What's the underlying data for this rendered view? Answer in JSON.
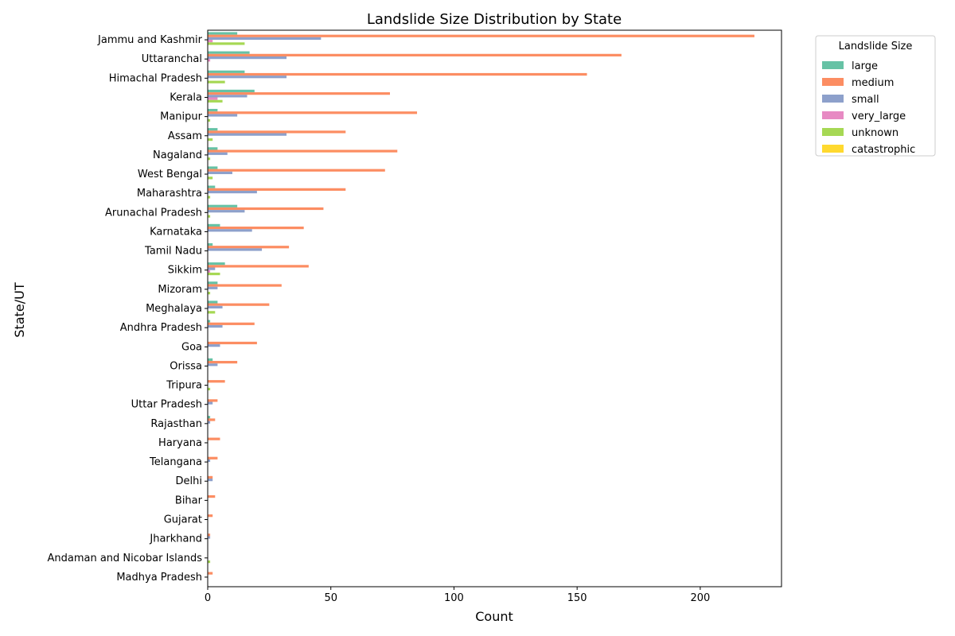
{
  "chart_data": {
    "type": "bar",
    "orientation": "horizontal",
    "title": "Landslide Size Distribution by State",
    "xlabel": "Count",
    "ylabel": "State/UT",
    "xlim": [
      0,
      233
    ],
    "xticks": [
      0,
      50,
      100,
      150,
      200
    ],
    "grid": false,
    "legend": {
      "title": "Landslide Size",
      "placement": "outside-top-right"
    },
    "categories": [
      "Jammu and Kashmir",
      "Uttaranchal",
      "Himachal Pradesh",
      "Kerala",
      "Manipur",
      "Assam",
      "Nagaland",
      "West Bengal",
      "Maharashtra",
      "Arunachal Pradesh",
      "Karnataka",
      "Tamil Nadu",
      "Sikkim",
      "Mizoram",
      "Meghalaya",
      "Andhra Pradesh",
      "Goa",
      "Orissa",
      "Tripura",
      "Uttar Pradesh",
      "Rajasthan",
      "Haryana",
      "Telangana",
      "Delhi",
      "Bihar",
      "Gujarat",
      "Jharkhand",
      "Andaman and Nicobar Islands",
      "Madhya Pradesh"
    ],
    "series": [
      {
        "name": "large",
        "color": "#66c2a5",
        "values": [
          12,
          17,
          15,
          19,
          4,
          4,
          4,
          4,
          3,
          12,
          5,
          2,
          7,
          4,
          4,
          1,
          0,
          2,
          0,
          0,
          1,
          0,
          0,
          0,
          0,
          0,
          0,
          0,
          0
        ]
      },
      {
        "name": "medium",
        "color": "#fc8d62",
        "values": [
          222,
          168,
          154,
          74,
          85,
          56,
          77,
          72,
          56,
          47,
          39,
          33,
          41,
          30,
          25,
          19,
          20,
          12,
          7,
          4,
          3,
          5,
          4,
          2,
          3,
          2,
          1,
          0,
          2
        ]
      },
      {
        "name": "small",
        "color": "#8da0cb",
        "values": [
          46,
          32,
          32,
          16,
          12,
          32,
          8,
          10,
          20,
          15,
          18,
          22,
          3,
          4,
          6,
          6,
          5,
          4,
          0,
          2,
          1,
          0,
          1,
          2,
          0,
          0,
          1,
          0,
          0
        ]
      },
      {
        "name": "very_large",
        "color": "#e78ac3",
        "values": [
          2,
          1,
          0,
          4,
          0,
          0,
          0,
          0,
          0,
          0,
          0,
          0,
          1,
          0,
          0,
          0,
          0,
          0,
          0,
          0,
          0,
          0,
          0,
          0,
          0,
          0,
          0,
          0,
          0
        ]
      },
      {
        "name": "unknown",
        "color": "#a6d854",
        "values": [
          15,
          0,
          7,
          6,
          1,
          2,
          1,
          2,
          1,
          1,
          0,
          0,
          5,
          1,
          3,
          0,
          0,
          0,
          1,
          0,
          0,
          0,
          0,
          0,
          0,
          0,
          0,
          1,
          0
        ]
      },
      {
        "name": "catastrophic",
        "color": "#ffd92f",
        "values": [
          0,
          0,
          0,
          0,
          0,
          0,
          0,
          0,
          0,
          0,
          0,
          0,
          0,
          0,
          0,
          0,
          0,
          0,
          0,
          0,
          0,
          0,
          0,
          0,
          0,
          0,
          0,
          0,
          0
        ]
      }
    ]
  }
}
